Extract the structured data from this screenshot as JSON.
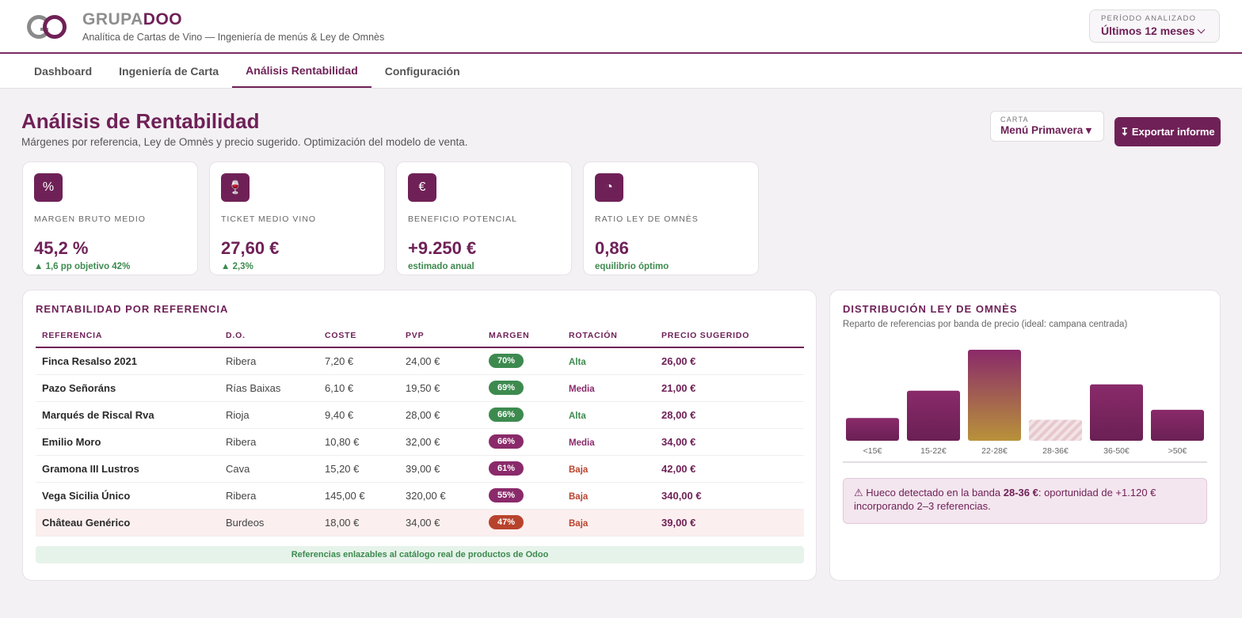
{
  "brand": {
    "name_a": "GRUPA",
    "name_b": "DOO",
    "subtitle": "Analítica de Cartas de Vino — Ingeniería de menús & Ley de Omnès"
  },
  "period": {
    "label": "PERÍODO ANALIZADO",
    "value": "Últimos 12 meses"
  },
  "tabs": [
    {
      "label": "Dashboard",
      "active": false
    },
    {
      "label": "Ingeniería de Carta",
      "active": false
    },
    {
      "label": "Análisis Rentabilidad",
      "active": true
    },
    {
      "label": "Configuración",
      "active": false
    }
  ],
  "page": {
    "title": "Análisis de Rentabilidad",
    "subtitle": "Márgenes por referencia, Ley de Omnès y precio sugerido. Optimización del modelo de venta."
  },
  "carta": {
    "label": "CARTA",
    "value": "Menú Primavera ▾"
  },
  "export_label": "↧ Exportar informe",
  "kpis": [
    {
      "icon": "percent-icon",
      "glyph": "%",
      "label": "MARGEN BRUTO MEDIO",
      "value": "45,2 %",
      "note": "▲ 1,6 pp objetivo 42%"
    },
    {
      "icon": "wine-glass-icon",
      "glyph": "🍷",
      "label": "TICKET MEDIO VINO",
      "value": "27,60 €",
      "note": "▲ 2,3%"
    },
    {
      "icon": "euro-icon",
      "glyph": "€",
      "label": "BENEFICIO POTENCIAL",
      "value": "+9.250 €",
      "note": "estimado anual"
    },
    {
      "icon": "pie-chart-icon",
      "glyph": "◔",
      "label": "RATIO LEY DE OMNÈS",
      "value": "0,86",
      "note": "equilibrio óptimo"
    }
  ],
  "table": {
    "title": "RENTABILIDAD POR REFERENCIA",
    "headers": [
      "REFERENCIA",
      "D.O.",
      "COSTE",
      "PVP",
      "MARGEN",
      "ROTACIÓN",
      "PRECIO SUGERIDO"
    ],
    "rows": [
      {
        "ref": "Finca Resalso 2021",
        "do": "Ribera",
        "coste": "7,20 €",
        "pvp": "24,00 €",
        "margen": "70%",
        "margen_color": "#3d8a4f",
        "rotacion": "Alta",
        "rot_color": "#3d8a4f",
        "sugerido": "26,00 €",
        "warn": false
      },
      {
        "ref": "Pazo Señoráns",
        "do": "Rías Baixas",
        "coste": "6,10 €",
        "pvp": "19,50 €",
        "margen": "69%",
        "margen_color": "#3d8a4f",
        "rotacion": "Media",
        "rot_color": "#8a2a6a",
        "sugerido": "21,00 €",
        "warn": false
      },
      {
        "ref": "Marqués de Riscal Rva",
        "do": "Rioja",
        "coste": "9,40 €",
        "pvp": "28,00 €",
        "margen": "66%",
        "margen_color": "#3d8a4f",
        "rotacion": "Alta",
        "rot_color": "#3d8a4f",
        "sugerido": "28,00 €",
        "warn": false
      },
      {
        "ref": "Emilio Moro",
        "do": "Ribera",
        "coste": "10,80 €",
        "pvp": "32,00 €",
        "margen": "66%",
        "margen_color": "#8a2a6a",
        "rotacion": "Media",
        "rot_color": "#8a2a6a",
        "sugerido": "34,00 €",
        "warn": false
      },
      {
        "ref": "Gramona III Lustros",
        "do": "Cava",
        "coste": "15,20 €",
        "pvp": "39,00 €",
        "margen": "61%",
        "margen_color": "#8a2a6a",
        "rotacion": "Baja",
        "rot_color": "#b8432d",
        "sugerido": "42,00 €",
        "warn": false
      },
      {
        "ref": "Vega Sicilia Único",
        "do": "Ribera",
        "coste": "145,00 €",
        "pvp": "320,00 €",
        "margen": "55%",
        "margen_color": "#8a2a6a",
        "rotacion": "Baja",
        "rot_color": "#b8432d",
        "sugerido": "340,00 €",
        "warn": false
      },
      {
        "ref": "Château Genérico",
        "do": "Burdeos",
        "coste": "18,00 €",
        "pvp": "34,00 €",
        "margen": "47%",
        "margen_color": "#b8432d",
        "rotacion": "Baja",
        "rot_color": "#b8432d",
        "sugerido": "39,00 €",
        "warn": true
      }
    ],
    "footer": "Referencias enlazables al catálogo real de productos de Odoo"
  },
  "distribution": {
    "title": "DISTRIBUCIÓN LEY DE OMNÈS",
    "subtitle": "Reparto de referencias por banda de precio (ideal: campana centrada)",
    "alert_prefix": "⚠ Hueco detectado en la banda ",
    "alert_band": "28-36 €",
    "alert_suffix": ": oportunidad de +1.120 € incorporando 2–3 referencias."
  },
  "chart_data": {
    "type": "bar",
    "categories": [
      "<15€",
      "15-22€",
      "22-28€",
      "28-36€",
      "36-50€",
      ">50€"
    ],
    "values": [
      2.5,
      5.5,
      10,
      2.3,
      6.2,
      3.4
    ],
    "highlight": "22-28€",
    "gap": "28-36€",
    "colors": {
      "bar": "#7a2a62",
      "highlight_top": "#8a2a6a",
      "highlight_bottom": "#b8923a",
      "gap": "#ebd2d6"
    }
  }
}
